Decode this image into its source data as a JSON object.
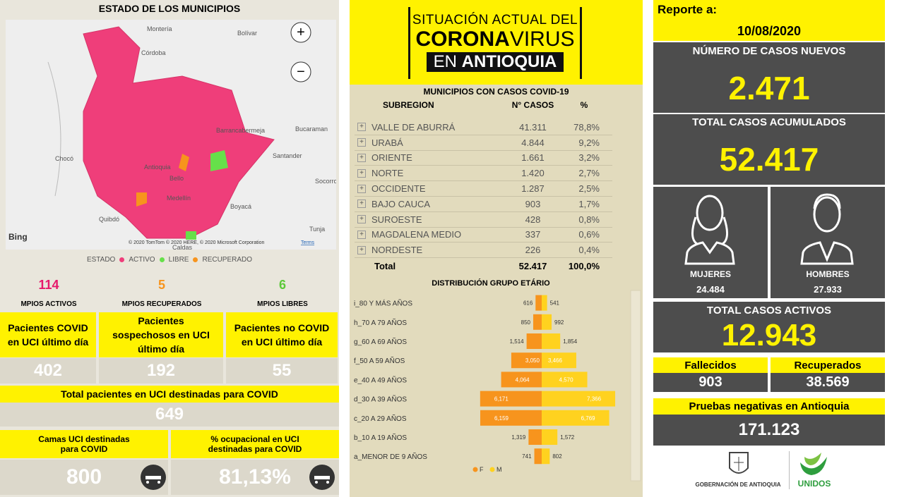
{
  "map": {
    "title": "ESTADO DE LOS MUNICIPIOS",
    "places": [
      "Montería",
      "Bolívar",
      "Córdoba",
      "Barrancabermeja",
      "Bucaraman",
      "Santander",
      "Chocó",
      "Antioquia",
      "Bello",
      "Medellín",
      "Boyacá",
      "Quibdó",
      "Socorro",
      "Tunja",
      "Caldas"
    ],
    "logo": "Bing",
    "attribution": "© 2020 TomTom © 2020 HERE, © 2020 Microsoft Corporation",
    "terms": "Terms",
    "legend_title": "ESTADO",
    "legend": [
      {
        "label": "ACTIVO",
        "color": "#ef3e7a"
      },
      {
        "label": "LIBRE",
        "color": "#66e04a"
      },
      {
        "label": "RECUPERADO",
        "color": "#f7941d"
      }
    ]
  },
  "municipios": [
    {
      "value": 114,
      "label": "MPIOS ACTIVOS",
      "color": "#e6196b"
    },
    {
      "value": 5,
      "label": "MPIOS RECUPERADOS",
      "color": "#f7941d"
    },
    {
      "value": 6,
      "label": "MPIOS LIBRES",
      "color": "#5cc93a"
    }
  ],
  "uci": [
    {
      "label": "Pacientes COVID en UCI último día",
      "value": 402
    },
    {
      "label": "Pacientes sospechosos en UCI último día",
      "value": 192
    },
    {
      "label": "Pacientes no COVID en UCI último día",
      "value": 55
    }
  ],
  "uci_total": {
    "label": "Total pacientes en UCI destinadas para COVID",
    "value": 649
  },
  "camas": {
    "label": "Camas UCI destinadas para COVID",
    "value": 800
  },
  "ocupacion": {
    "label": "% ocupacional en UCI destinadas para COVID",
    "value": "81,13%"
  },
  "header": {
    "line1": "SITUACIÓN ACTUAL DEL",
    "corona": "CORONA",
    "virus": "VIRUS",
    "en": "EN",
    "place": "ANTIOQUIA"
  },
  "table": {
    "title": "MUNICIPIOS CON CASOS COVID-19",
    "columns": [
      "SUBREGION",
      "N° CASOS",
      "%"
    ],
    "rows": [
      [
        "VALLE DE ABURRÁ",
        "41.311",
        "78,8%"
      ],
      [
        "URABÁ",
        "4.844",
        "9,2%"
      ],
      [
        "ORIENTE",
        "1.661",
        "3,2%"
      ],
      [
        "NORTE",
        "1.420",
        "2,7%"
      ],
      [
        "OCCIDENTE",
        "1.287",
        "2,5%"
      ],
      [
        "BAJO CAUCA",
        "903",
        "1,7%"
      ],
      [
        "SUROESTE",
        "428",
        "0,8%"
      ],
      [
        "MAGDALENA MEDIO",
        "337",
        "0,6%"
      ],
      [
        "NORDESTE",
        "226",
        "0,4%"
      ]
    ],
    "total": [
      "Total",
      "52.417",
      "100,0%"
    ]
  },
  "age_distribution": {
    "type": "bar",
    "title": "DISTRIBUCIÓN GRUPO ETÁRIO",
    "categories": [
      "i_80 Y MÁS AÑOS",
      "h_70 A 79 AÑOS",
      "g_60 A 69 AÑOS",
      "f_50 A 59 AÑOS",
      "e_40 A 49 AÑOS",
      "d_30 A 39 AÑOS",
      "c_20 A 29 AÑOS",
      "b_10 A 19 AÑOS",
      "a_MENOR DE 9 AÑOS"
    ],
    "xlim": [
      0,
      8000
    ],
    "series": [
      {
        "name": "F",
        "color": "#f7941d",
        "values": [
          616,
          850,
          1514,
          3050,
          4064,
          6171,
          6159,
          1319,
          741
        ],
        "value_labels": [
          "616",
          "850",
          "1,514",
          "3,050",
          "4,064",
          "6,171",
          "6,159",
          "1,319",
          "741"
        ]
      },
      {
        "name": "M",
        "color": "#ffd21f",
        "values": [
          541,
          992,
          1854,
          3466,
          4570,
          7366,
          6769,
          1572,
          802
        ],
        "value_labels": [
          "541",
          "992",
          "1,854",
          "3,466",
          "4,570",
          "7,366",
          "6,769",
          "1,572",
          "802"
        ]
      }
    ]
  },
  "report": {
    "label": "Reporte a:",
    "date": "10/08/2020"
  },
  "casos_nuevos": {
    "label": "NÚMERO DE CASOS NUEVOS",
    "value": "2.471"
  },
  "casos_acumulados": {
    "label": "TOTAL CASOS ACUMULADOS",
    "value": "52.417"
  },
  "mujeres": {
    "label": "MUJERES",
    "value": "24.484"
  },
  "hombres": {
    "label": "HOMBRES",
    "value": "27.933"
  },
  "casos_activos": {
    "label": "TOTAL CASOS ACTIVOS",
    "value": "12.943"
  },
  "fallecidos": {
    "label": "Fallecidos",
    "value": "903"
  },
  "recuperados": {
    "label": "Recuperados",
    "value": "38.569"
  },
  "pruebas": {
    "label": "Pruebas negativas en Antioquia",
    "value": "171.123"
  },
  "footer": {
    "gobernacion": "GOBERNACIÓN DE ANTIOQUIA",
    "unidos": "UNIDOS"
  }
}
